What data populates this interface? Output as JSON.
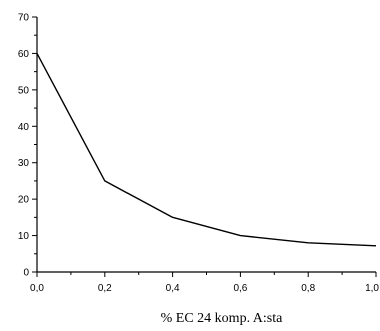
{
  "chart_data": {
    "type": "line",
    "title": "",
    "xlabel": "% EC 24 komp. A:sta",
    "ylabel": "",
    "x": [
      0.0,
      0.2,
      0.4,
      0.6,
      0.8,
      1.0
    ],
    "series": [
      {
        "values": [
          60,
          25,
          15,
          10,
          8,
          7.2
        ]
      }
    ],
    "xlim": [
      0,
      1.0
    ],
    "ylim": [
      0,
      70
    ],
    "xticks": [
      "0,0",
      "0,2",
      "0,4",
      "0,6",
      "0,8",
      "1,0"
    ],
    "xtick_values": [
      0,
      0.2,
      0.4,
      0.6,
      0.8,
      1.0
    ],
    "yticks": [
      "0",
      "10",
      "20",
      "30",
      "40",
      "50",
      "60",
      "70"
    ],
    "ytick_values": [
      0,
      10,
      20,
      30,
      40,
      50,
      60,
      70
    ],
    "grid": false,
    "legend": "none",
    "line_color": "#000000"
  }
}
